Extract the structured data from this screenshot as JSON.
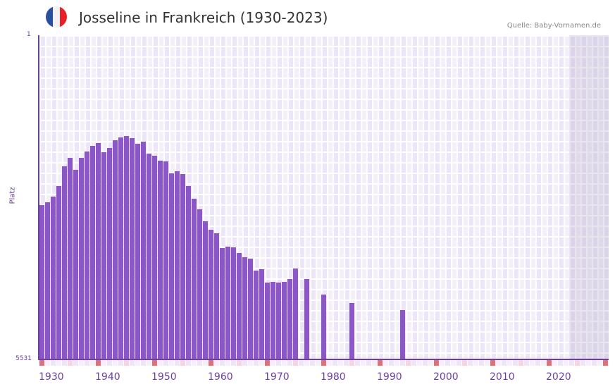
{
  "header": {
    "title": "Josseline in Frankreich (1930-2023)",
    "source": "Quelle: Baby-Vornamen.de",
    "flag_colors": [
      "#2a4fa0",
      "#f2f2f2",
      "#e8202a"
    ]
  },
  "colors": {
    "bar": "#8c55c8",
    "axis": "#6b3fa0",
    "decade_mark": "#e0707a",
    "half_decade_mark": "#f3d6de"
  },
  "chart_data": {
    "type": "bar",
    "title": "Josseline in Frankreich (1930-2023)",
    "xlabel": "",
    "ylabel": "Platz",
    "ylim": [
      5531,
      1
    ],
    "y_ticks": [
      "1",
      "5531"
    ],
    "x_ticks": [
      "1930",
      "1940",
      "1950",
      "1960",
      "1970",
      "1980",
      "1990",
      "2000",
      "2010",
      "2020"
    ],
    "grid": true,
    "legend": null,
    "categories": [
      1930,
      1931,
      1932,
      1933,
      1934,
      1935,
      1936,
      1937,
      1938,
      1939,
      1940,
      1941,
      1942,
      1943,
      1944,
      1945,
      1946,
      1947,
      1948,
      1949,
      1950,
      1951,
      1952,
      1953,
      1954,
      1955,
      1956,
      1957,
      1958,
      1959,
      1960,
      1961,
      1962,
      1963,
      1964,
      1965,
      1966,
      1967,
      1968,
      1969,
      1970,
      1971,
      1972,
      1973,
      1974,
      1975,
      1977,
      1980,
      1985,
      1994
    ],
    "values": [
      2900,
      2850,
      2755,
      2575,
      2240,
      2095,
      2300,
      2095,
      1990,
      1890,
      1845,
      2000,
      1930,
      1795,
      1745,
      1725,
      1760,
      1855,
      1820,
      2015,
      2060,
      2145,
      2155,
      2360,
      2315,
      2375,
      2575,
      2795,
      2975,
      3180,
      3320,
      3380,
      3635,
      3610,
      3625,
      3710,
      3790,
      3815,
      4020,
      3995,
      4215,
      4205,
      4225,
      4205,
      4155,
      3985,
      4165,
      4420,
      4565,
      4685
    ]
  },
  "axis": {
    "y_top": "1",
    "y_bottom": "5531",
    "y_title": "Platz"
  }
}
